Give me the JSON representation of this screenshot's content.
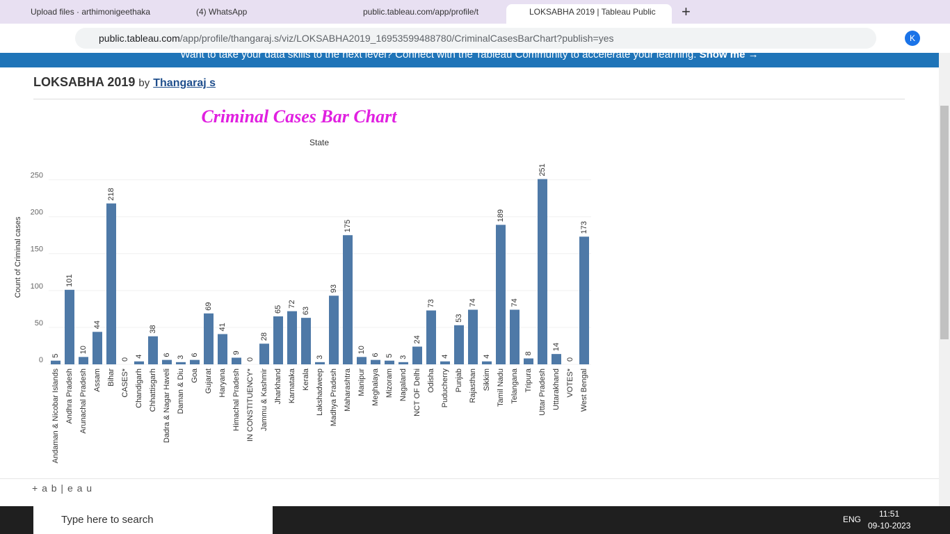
{
  "browser": {
    "tabs": [
      "Upload files · arthimonigeethaka",
      "(4) WhatsApp",
      "public.tableau.com/app/profile/t",
      "LOKSABHA 2019 | Tableau Public"
    ],
    "url_host": "public.tableau.com",
    "url_path": "/app/profile/thangaraj.s/viz/LOKSABHA2019_16953599488780/CriminalCasesBarChart?publish=yes",
    "avatar": "K"
  },
  "banner": {
    "text": "Want to take your data skills to the next level? Connect with the Tableau Community to accelerate your learning.",
    "link": "Show me →"
  },
  "header": {
    "title": "LOKSABHA 2019",
    "by": "by",
    "author": "Thangaraj s"
  },
  "footer": {
    "brand": "+ a b | e a u"
  },
  "taskbar": {
    "search": "Type here to search",
    "language": "ENG",
    "time": "11:51",
    "date": "09-10-2023"
  },
  "chart_data": {
    "type": "bar",
    "title": "Criminal Cases Bar Chart",
    "x_label": "State",
    "y_label": "Count of Criminal cases",
    "categories": [
      "Andaman & Nicobar Islands",
      "Andhra Pradesh",
      "Arunachal Pradesh",
      "Assam",
      "Bihar",
      "CASES*",
      "Chandigarh",
      "Chhattisgarh",
      "Dadra & Nagar Haveli",
      "Daman & Diu",
      "Goa",
      "Gujarat",
      "Haryana",
      "Himachal Pradesh",
      "IN CONSTITUENCY*",
      "Jammu & Kashmir",
      "Jharkhand",
      "Karnataka",
      "Kerala",
      "Lakshadweep",
      "Madhya Pradesh",
      "Maharashtra",
      "Manipur",
      "Meghalaya",
      "Mizoram",
      "Nagaland",
      "NCT OF Delhi",
      "Odisha",
      "Puducherry",
      "Punjab",
      "Rajasthan",
      "Sikkim",
      "Tamil Nadu",
      "Telangana",
      "Tripura",
      "Uttar Pradesh",
      "Uttarakhand",
      "VOTES*",
      "West Bengal"
    ],
    "values": [
      5,
      101,
      10,
      44,
      218,
      0,
      4,
      38,
      6,
      3,
      6,
      69,
      41,
      9,
      0,
      28,
      65,
      72,
      63,
      3,
      93,
      175,
      10,
      6,
      5,
      3,
      24,
      73,
      4,
      53,
      74,
      4,
      189,
      74,
      8,
      251,
      14,
      0,
      173
    ],
    "color": "#4e79a7",
    "ylim": [
      0,
      260
    ],
    "yticks": [
      0,
      50,
      100,
      150,
      200,
      250
    ],
    "grid": true
  }
}
